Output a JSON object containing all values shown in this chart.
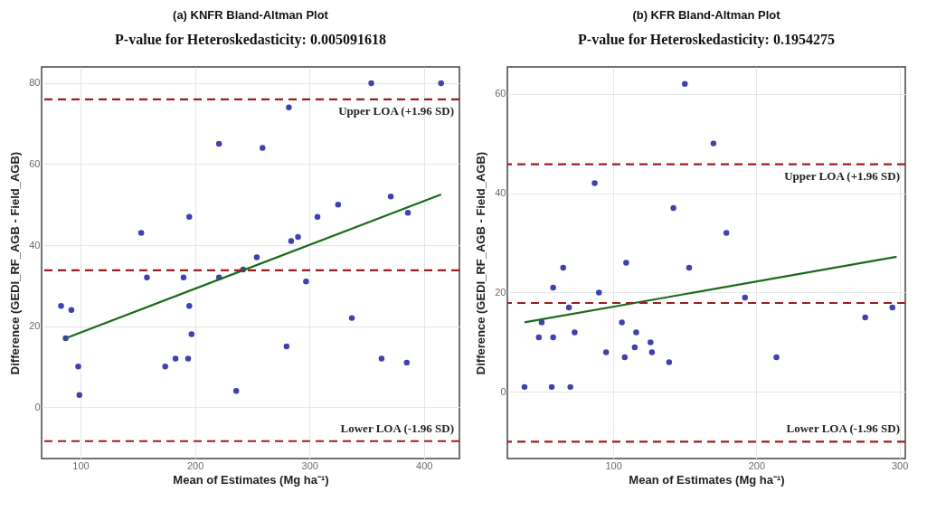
{
  "chart_data": [
    {
      "type": "scatter",
      "title": "(a) KNFR Bland-Altman Plot",
      "subtitle": "P-value for Heteroskedasticity: 0.005091618",
      "xlabel": "Mean of Estimates (Mg ha⁻¹)",
      "ylabel": "Difference (GEDI_RF_AGB - Field_AGB)",
      "xlim": [
        66,
        431
      ],
      "ylim": [
        -12.7,
        84
      ],
      "xticks": [
        100,
        200,
        300,
        400
      ],
      "yticks": [
        0,
        20,
        40,
        60,
        80
      ],
      "grid": true,
      "series": [
        {
          "type": "scatter",
          "marker": "circle",
          "color": "#4040b0",
          "x": [
            83,
            87,
            92,
            98,
            99,
            153,
            158,
            174,
            183,
            190,
            194,
            195,
            195,
            197,
            221,
            221,
            236,
            242,
            254,
            259,
            280,
            282,
            284,
            290,
            297,
            307,
            325,
            337,
            354,
            363,
            371,
            386,
            385,
            415
          ],
          "values": [
            25,
            17,
            24,
            10,
            3,
            43,
            32,
            10,
            12,
            32,
            12,
            47,
            25,
            18,
            65,
            32,
            4,
            34,
            37,
            64,
            15,
            74,
            41,
            42,
            31,
            47,
            50,
            22,
            80,
            12,
            52,
            48,
            11,
            80
          ]
        },
        {
          "type": "line",
          "color": "#1a6b1a",
          "line_style": "solid",
          "x": [
            87,
            415
          ],
          "values": [
            17,
            52.5
          ]
        }
      ],
      "ref_lines": [
        {
          "axis": "y",
          "value": 76,
          "label": "Upper LOA (+1.96 SD)",
          "color": "#a01c1c",
          "line_style": "dashed"
        },
        {
          "axis": "y",
          "value": 33.8,
          "color": "#a01c1c",
          "line_style": "dashed"
        },
        {
          "axis": "y",
          "value": -8.4,
          "label": "Lower LOA (-1.96 SD)",
          "color": "#a01c1c",
          "line_style": "dashed"
        }
      ]
    },
    {
      "type": "scatter",
      "title": "(b) KFR Bland-Altman Plot",
      "subtitle": "P-value for Heteroskedasticity: 0.1954275",
      "xlabel": "Mean of Estimates (Mg ha⁻¹)",
      "ylabel": "Difference (GEDI_RF_AGB - Field_AGB)",
      "xlim": [
        26,
        304
      ],
      "ylim": [
        -13.4,
        65.4
      ],
      "xticks": [
        100,
        200,
        300
      ],
      "yticks": [
        0,
        20,
        40,
        60
      ],
      "grid": true,
      "series": [
        {
          "type": "scatter",
          "marker": "circle",
          "color": "#4040b0",
          "x": [
            38,
            48,
            50,
            58,
            58,
            57,
            65,
            69,
            70,
            73,
            87,
            90,
            95,
            106,
            108,
            109,
            115,
            116,
            126,
            127,
            139,
            142,
            150,
            153,
            170,
            179,
            192,
            214,
            276,
            295
          ],
          "values": [
            1,
            11,
            14,
            21,
            11,
            1,
            25,
            17,
            1,
            12,
            42,
            20,
            8,
            14,
            7,
            26,
            9,
            12,
            10,
            8,
            6,
            37,
            62,
            25,
            50,
            32,
            19,
            7,
            15,
            17
          ]
        },
        {
          "type": "line",
          "color": "#1a6b1a",
          "line_style": "solid",
          "x": [
            38,
            298
          ],
          "values": [
            14,
            27.2
          ]
        }
      ],
      "ref_lines": [
        {
          "axis": "y",
          "value": 45.8,
          "label": "Upper LOA (+1.96 SD)",
          "color": "#a01c1c",
          "line_style": "dashed"
        },
        {
          "axis": "y",
          "value": 17.9,
          "color": "#a01c1c",
          "line_style": "dashed"
        },
        {
          "axis": "y",
          "value": -10,
          "label": "Lower LOA (-1.96 SD)",
          "color": "#a01c1c",
          "line_style": "dashed"
        }
      ]
    }
  ]
}
